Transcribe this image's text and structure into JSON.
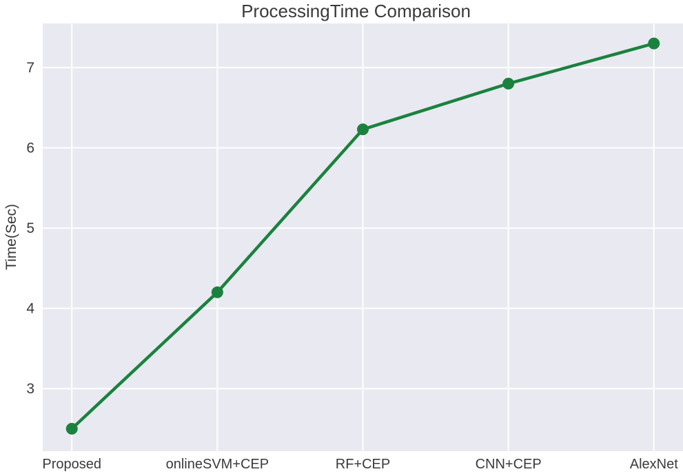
{
  "chart_data": {
    "type": "line",
    "title": "ProcessingTime Comparison",
    "xlabel": "",
    "ylabel": "Time(Sec)",
    "categories": [
      "Proposed",
      "onlineSVM+CEP",
      "RF+CEP",
      "CNN+CEP",
      "AlexNet"
    ],
    "series": [
      {
        "name": "ProcessingTime",
        "values": [
          2.5,
          4.2,
          6.23,
          6.8,
          7.3
        ]
      }
    ],
    "yticks": [
      3,
      4,
      5,
      6,
      7
    ],
    "ylim": [
      2.22,
      7.55
    ],
    "xlim": [
      -0.2,
      4.2
    ],
    "grid": true,
    "legend": "none",
    "marker": "circle",
    "colors": {
      "line": "#1a823e",
      "plot_bg": "#e9e9f1",
      "grid": "#ffffff",
      "text": "#3a3a3a"
    }
  }
}
